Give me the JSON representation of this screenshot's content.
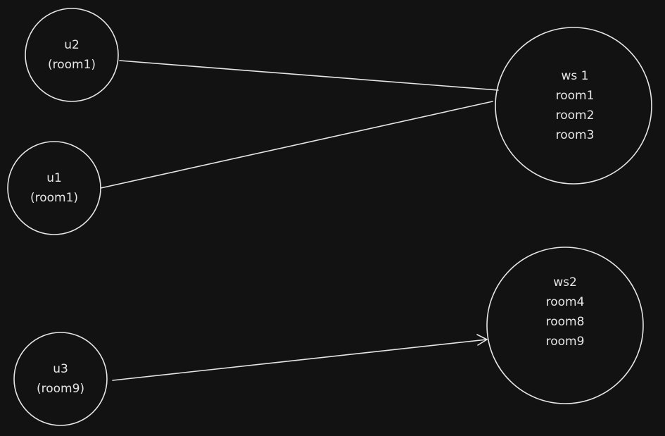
{
  "nodes": {
    "u2": {
      "lines": [
        "u2",
        "(room1)"
      ]
    },
    "u1": {
      "lines": [
        "u1",
        "(room1)"
      ]
    },
    "u3": {
      "lines": [
        "u3",
        "(room9)"
      ]
    },
    "ws1": {
      "lines": [
        "ws 1",
        "room1",
        "room2",
        "room3"
      ]
    },
    "ws2": {
      "lines": [
        "ws2",
        "room4",
        "room8",
        "room9"
      ]
    }
  },
  "connections": [
    {
      "from": "u2",
      "to": "ws1",
      "arrow": false
    },
    {
      "from": "u1",
      "to": "ws1",
      "arrow": false
    },
    {
      "from": "u3",
      "to": "ws2",
      "arrow": true
    }
  ],
  "colors": {
    "background": "#121212",
    "stroke": "#e6e6e6"
  }
}
